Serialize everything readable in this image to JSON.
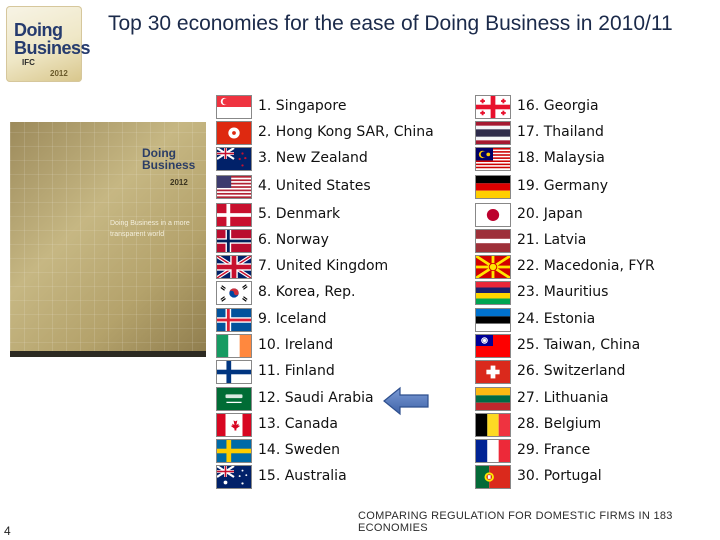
{
  "logo": {
    "line1": "Doing",
    "line2": "Business",
    "org": "IFC",
    "year": "2012"
  },
  "title": "Top 30 economies for the ease of Doing Business in 2010/11",
  "cover": {
    "line1": "Doing",
    "line2": "Business",
    "year": "2012",
    "subtitle": "Doing Business in a more transparent world"
  },
  "left_list": [
    {
      "label": "1. Singapore",
      "flag": "singapore-flag"
    },
    {
      "label": "2. Hong Kong SAR, China",
      "flag": "hong-kong-flag"
    },
    {
      "label": "3. New Zealand",
      "flag": "new-zealand-flag"
    },
    {
      "label": "4. United States",
      "flag": "united-states-flag"
    },
    {
      "label": "5. Denmark",
      "flag": "denmark-flag"
    },
    {
      "label": "6. Norway",
      "flag": "norway-flag"
    },
    {
      "label": "7. United Kingdom",
      "flag": "united-kingdom-flag"
    },
    {
      "label": "8. Korea, Rep.",
      "flag": "korea-flag"
    },
    {
      "label": "9. Iceland",
      "flag": "iceland-flag"
    },
    {
      "label": "10. Ireland",
      "flag": "ireland-flag"
    },
    {
      "label": "11. Finland",
      "flag": "finland-flag"
    },
    {
      "label": "12. Saudi Arabia",
      "flag": "saudi-arabia-flag"
    },
    {
      "label": "13. Canada",
      "flag": "canada-flag"
    },
    {
      "label": "14. Sweden",
      "flag": "sweden-flag"
    },
    {
      "label": "15. Australia",
      "flag": "australia-flag"
    }
  ],
  "right_list": [
    {
      "label": "16. Georgia",
      "flag": "georgia-flag"
    },
    {
      "label": "17. Thailand",
      "flag": "thailand-flag"
    },
    {
      "label": "18. Malaysia",
      "flag": "malaysia-flag"
    },
    {
      "label": "19. Germany",
      "flag": "germany-flag"
    },
    {
      "label": "20. Japan",
      "flag": "japan-flag"
    },
    {
      "label": "21. Latvia",
      "flag": "latvia-flag"
    },
    {
      "label": "22. Macedonia, FYR",
      "flag": "macedonia-flag"
    },
    {
      "label": "23. Mauritius",
      "flag": "mauritius-flag"
    },
    {
      "label": "24. Estonia",
      "flag": "estonia-flag"
    },
    {
      "label": "25. Taiwan, China",
      "flag": "taiwan-flag"
    },
    {
      "label": "26. Switzerland",
      "flag": "switzerland-flag"
    },
    {
      "label": "27. Lithuania",
      "flag": "lithuania-flag"
    },
    {
      "label": "28. Belgium",
      "flag": "belgium-flag"
    },
    {
      "label": "29. France",
      "flag": "france-flag"
    },
    {
      "label": "30. Portugal",
      "flag": "portugal-flag"
    }
  ],
  "arrow_icon": "left-arrow-icon",
  "arrow_color": "#4a6fb5",
  "page_number": "4",
  "footer": "COMPARING REGULATION FOR DOMESTIC FIRMS IN 183 ECONOMIES"
}
